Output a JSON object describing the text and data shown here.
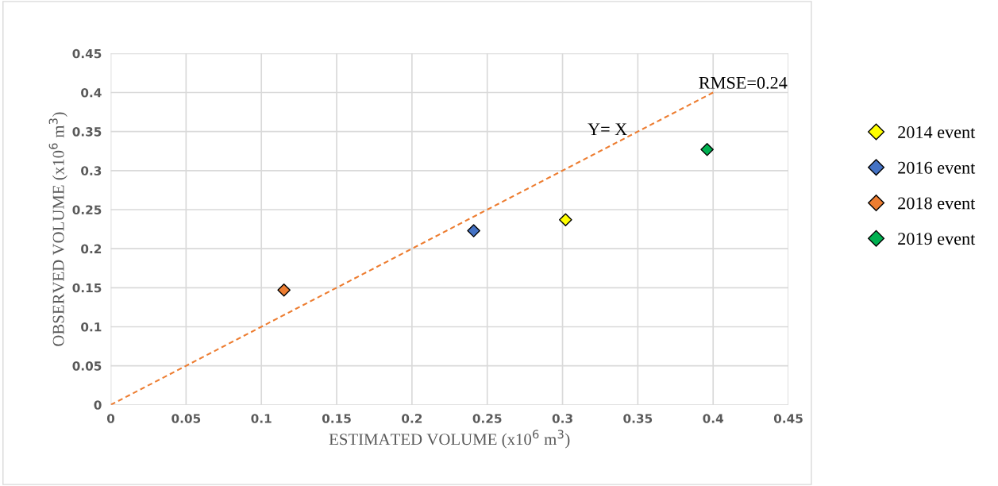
{
  "chart_data": {
    "type": "scatter",
    "xlabel": "ESTIMATED VOLUME (x10$^{6}$ m$^{3}$)",
    "ylabel": "OBSERVED VOLUME (x10$^{6}$ m$^{3}$)",
    "xlim": [
      0,
      0.45
    ],
    "ylim": [
      0,
      0.45
    ],
    "xticks": [
      0,
      0.05,
      0.1,
      0.15,
      0.2,
      0.25,
      0.3,
      0.35,
      0.4,
      0.45
    ],
    "yticks": [
      0,
      0.05,
      0.1,
      0.15,
      0.2,
      0.25,
      0.3,
      0.35,
      0.4,
      0.45
    ],
    "grid": true,
    "legend": "right",
    "marker": "diamond",
    "series": [
      {
        "name": "2014 event",
        "color": "#ffff00",
        "x": [
          0.302
        ],
        "values": [
          0.237
        ]
      },
      {
        "name": "2016 event",
        "color": "#4472c4",
        "x": [
          0.241
        ],
        "values": [
          0.223
        ]
      },
      {
        "name": "2018 event",
        "color": "#ed7d31",
        "x": [
          0.115
        ],
        "values": [
          0.147
        ]
      },
      {
        "name": "2019 event",
        "color": "#00b050",
        "x": [
          0.396
        ],
        "values": [
          0.327
        ]
      },
      {
        "type": "line",
        "color": "#ed7d31",
        "line_style": "dashed",
        "marker": "none",
        "x": [
          0,
          0.4
        ],
        "values": [
          0,
          0.4
        ]
      }
    ],
    "annotations": [
      "Y= X",
      "RMSE=0.24"
    ]
  }
}
